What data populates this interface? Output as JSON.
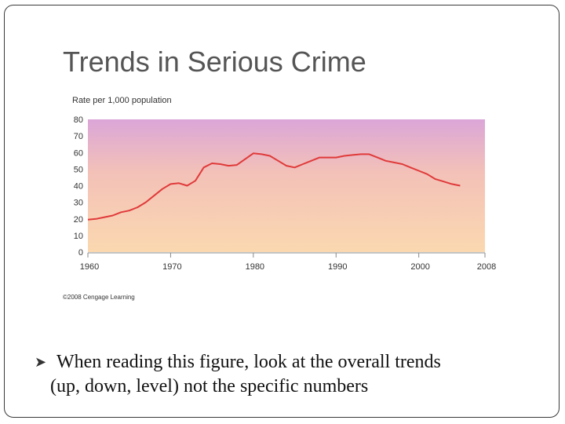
{
  "slide": {
    "title": "Trends in Serious Crime",
    "bullet_icon": "bullet-arrow-icon",
    "bullet_text_line1": "When reading this figure, look at the overall trends",
    "bullet_text_line2": "(up, down, level)  not the specific numbers"
  },
  "chart_data": {
    "type": "line",
    "title": "",
    "ylabel": "Rate per 1,000 population",
    "xlabel": "",
    "credit": "©2008 Cengage Learning",
    "xlim": [
      1960,
      2008
    ],
    "ylim": [
      0,
      80
    ],
    "x_ticks": [
      "1960",
      "1970",
      "1980",
      "1990",
      "2000",
      "2008"
    ],
    "y_ticks": [
      "0",
      "10",
      "20",
      "30",
      "40",
      "50",
      "60",
      "70",
      "80"
    ],
    "grid": false,
    "background": "vertical gradient from purple (top) to peach/orange (bottom)",
    "colors": {
      "line": "#e03a3a",
      "gradient_top": "#dba6d8",
      "gradient_mid": "#f3c1b8",
      "gradient_bottom": "#fbd8b0"
    },
    "series": [
      {
        "x": [
          1960,
          1961,
          1962,
          1963,
          1964,
          1965,
          1966,
          1967,
          1968,
          1969,
          1970,
          1971,
          1972,
          1973,
          1974,
          1975,
          1976,
          1977,
          1978,
          1979,
          1980,
          1981,
          1982,
          1983,
          1984,
          1985,
          1986,
          1987,
          1988,
          1989,
          1990,
          1991,
          1992,
          1993,
          1994,
          1995,
          1996,
          1997,
          1998,
          1999,
          2000,
          2001,
          2002,
          2003,
          2004,
          2005
        ],
        "y": [
          19.5,
          20,
          21,
          22,
          24,
          25,
          27,
          30,
          34,
          38,
          41,
          41.5,
          40,
          43,
          51,
          53.5,
          53,
          52,
          52.5,
          56,
          59.5,
          59,
          58,
          55,
          52,
          51,
          53,
          55,
          57,
          57,
          57,
          58,
          58.5,
          59,
          59,
          57,
          55,
          54,
          53,
          51,
          49,
          47,
          44,
          42.5,
          41,
          40
        ]
      }
    ]
  }
}
